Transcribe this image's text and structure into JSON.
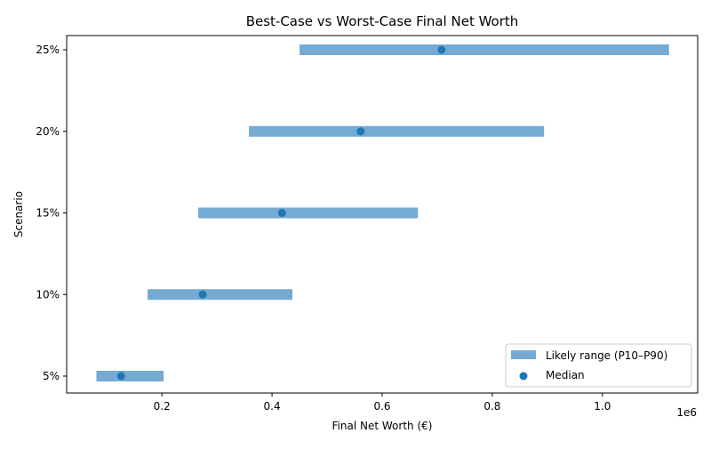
{
  "chart_data": {
    "type": "range",
    "title": "Best-Case vs Worst-Case Final Net Worth",
    "xlabel": "Final Net Worth (€)",
    "ylabel": "Scenario",
    "x_offset_label": "1e6",
    "xlim": [
      27000,
      1173000
    ],
    "x_ticks": [
      200000,
      400000,
      600000,
      800000,
      1000000
    ],
    "x_tick_labels": [
      "0.2",
      "0.4",
      "0.6",
      "0.8",
      "1.0"
    ],
    "categories": [
      "5%",
      "10%",
      "15%",
      "20%",
      "25%"
    ],
    "low": [
      81000,
      174000,
      266000,
      358000,
      450000
    ],
    "high": [
      203000,
      437000,
      665000,
      894000,
      1121000
    ],
    "median": [
      126000,
      274000,
      418000,
      561000,
      708000
    ],
    "grid": false,
    "legend": {
      "placement": "lower-right",
      "entries": [
        "Likely range (P10–P90)",
        "Median"
      ]
    },
    "colors": {
      "range": "#75aad2",
      "median": "#1f77b4"
    }
  }
}
